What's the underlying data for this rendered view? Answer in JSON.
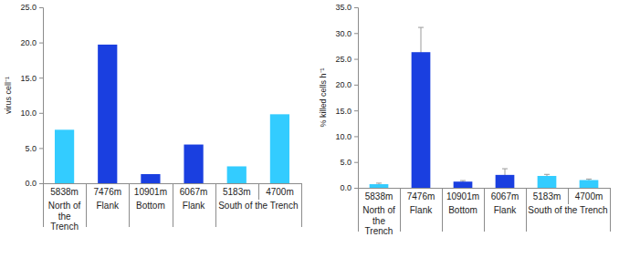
{
  "chart_data": [
    {
      "type": "bar",
      "y_label": "virus cell⁻¹",
      "categories": [
        "5838m",
        "7476m",
        "10901m",
        "6067m",
        "5183m",
        "4700m"
      ],
      "groups": [
        {
          "label": "North of the Trench",
          "first": 0,
          "last": 0
        },
        {
          "label": "Flank",
          "first": 1,
          "last": 1
        },
        {
          "label": "Bottom",
          "first": 2,
          "last": 2
        },
        {
          "label": "Flank",
          "first": 3,
          "last": 3
        },
        {
          "label": "South of the Trench",
          "first": 4,
          "last": 5
        }
      ],
      "values": [
        7.6,
        19.7,
        1.3,
        5.5,
        2.4,
        9.8
      ],
      "colors": [
        "#33ccff",
        "#1a3fe0",
        "#1a3fe0",
        "#1a3fe0",
        "#33ccff",
        "#33ccff"
      ],
      "ylim": [
        0,
        25
      ],
      "yticks": [
        {
          "value": 0,
          "label": "0.0"
        },
        {
          "value": 5,
          "label": "5.0"
        },
        {
          "value": 10,
          "label": "10.0"
        },
        {
          "value": 15,
          "label": "15.0"
        },
        {
          "value": 20,
          "label": "20.0"
        },
        {
          "value": 25,
          "label": "25.0"
        }
      ],
      "grid": false
    },
    {
      "type": "bar",
      "y_label": "% killed cells h⁻¹",
      "categories": [
        "5838m",
        "7476m",
        "10901m",
        "6067m",
        "5183m",
        "4700m"
      ],
      "groups": [
        {
          "label": "North of the Trench",
          "first": 0,
          "last": 0
        },
        {
          "label": "Flank",
          "first": 1,
          "last": 1
        },
        {
          "label": "Bottom",
          "first": 2,
          "last": 2
        },
        {
          "label": "Flank",
          "first": 3,
          "last": 3
        },
        {
          "label": "South of the Trench",
          "first": 4,
          "last": 5
        }
      ],
      "values": [
        0.7,
        26.3,
        1.2,
        2.5,
        2.3,
        1.5
      ],
      "errors": [
        0.2,
        4.8,
        0.2,
        1.2,
        0.3,
        0.2
      ],
      "colors": [
        "#33ccff",
        "#1a3fe0",
        "#1a3fe0",
        "#1a3fe0",
        "#33ccff",
        "#33ccff"
      ],
      "ylim": [
        0,
        35
      ],
      "yticks": [
        {
          "value": 0,
          "label": "0.0"
        },
        {
          "value": 5,
          "label": "5.0"
        },
        {
          "value": 10,
          "label": "10.0"
        },
        {
          "value": 15,
          "label": "15.0"
        },
        {
          "value": 20,
          "label": "20.0"
        },
        {
          "value": 25,
          "label": "25.0"
        },
        {
          "value": 30,
          "label": "30.0"
        },
        {
          "value": 35,
          "label": "35.0"
        }
      ],
      "grid": false
    }
  ]
}
